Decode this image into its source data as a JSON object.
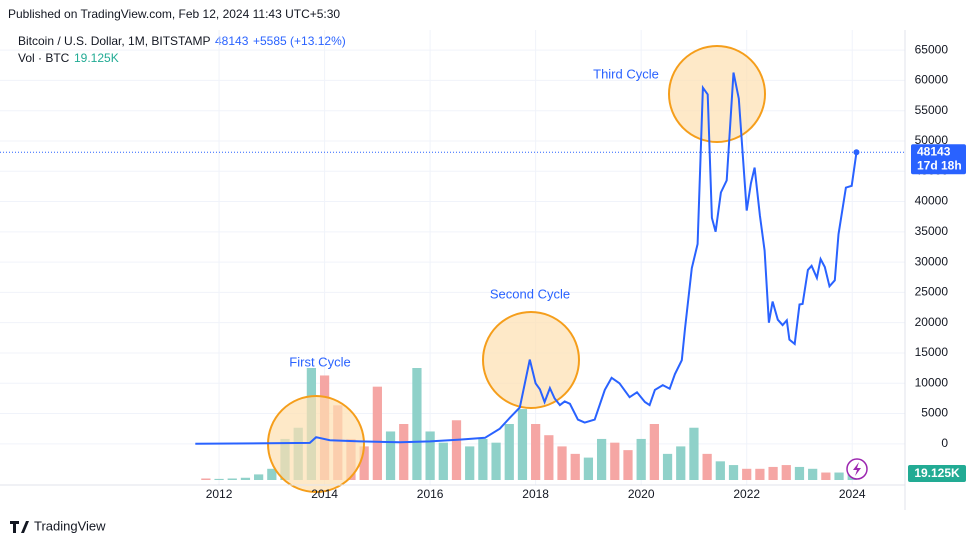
{
  "published": "Published on TradingView.com, Feb 12, 2024 11:43 UTC+5:30",
  "footer": "TradingView",
  "chart_data": {
    "type": "line",
    "title": "Bitcoin / U.S. Dollar, 1M, BITSTAMP",
    "change": "+5585 (+13.12%)",
    "countdown": "17d 18h",
    "annotations": [
      "First Cycle",
      "Second Cycle",
      "Third Cycle"
    ],
    "xlim": [
      2008,
      2025
    ],
    "xticks": [
      2012,
      2014,
      2016,
      2018,
      2020,
      2022,
      2024
    ],
    "ylim": [
      -6800,
      67500
    ],
    "yticks": [
      0,
      5000,
      10000,
      15000,
      20000,
      25000,
      30000,
      35000,
      40000,
      45000,
      50000,
      55000,
      60000,
      65000
    ],
    "grid": true,
    "series": [
      {
        "name": "Bitcoin / U.S. Dollar, 1M, BITSTAMP",
        "color": "#2962ff",
        "x": [
          2011.55,
          2013.72,
          2013.84,
          2014.1,
          2014.67,
          2015.43,
          2016.0,
          2016.56,
          2017.04,
          2017.32,
          2017.51,
          2017.7,
          2017.89,
          2018.0,
          2018.08,
          2018.17,
          2018.27,
          2018.36,
          2018.46,
          2018.55,
          2018.65,
          2018.8,
          2018.93,
          2019.12,
          2019.31,
          2019.44,
          2019.59,
          2019.78,
          2019.92,
          2020.07,
          2020.16,
          2020.26,
          2020.41,
          2020.54,
          2020.64,
          2020.77,
          2020.83,
          2020.96,
          2021.07,
          2021.17,
          2021.26,
          2021.34,
          2021.41,
          2021.51,
          2021.62,
          2021.75,
          2021.85,
          2022.0,
          2022.08,
          2022.15,
          2022.25,
          2022.34,
          2022.42,
          2022.49,
          2022.59,
          2022.68,
          2022.76,
          2022.81,
          2022.91,
          2023.0,
          2023.06,
          2023.16,
          2023.23,
          2023.33,
          2023.4,
          2023.48,
          2023.57,
          2023.67,
          2023.74,
          2023.88,
          2023.99,
          2024.08
        ],
        "values": [
          5,
          150,
          1100,
          600,
          400,
          250,
          400,
          700,
          1000,
          2500,
          4300,
          6000,
          13900,
          10000,
          9000,
          6900,
          9200,
          7500,
          6400,
          7000,
          6600,
          4000,
          3500,
          4000,
          8900,
          10900,
          10000,
          7700,
          8500,
          6900,
          6400,
          8900,
          9700,
          9100,
          11500,
          13800,
          19000,
          29000,
          33000,
          58800,
          57700,
          37300,
          35000,
          41500,
          43500,
          61300,
          57000,
          38500,
          43000,
          45600,
          37700,
          31900,
          20000,
          23500,
          20500,
          19600,
          20400,
          17200,
          16500,
          23000,
          23100,
          28700,
          29400,
          27400,
          30500,
          29200,
          26000,
          27000,
          34600,
          42300,
          42600,
          48143
        ]
      }
    ],
    "volume": {
      "name": "Vol · BTC",
      "up_color": "#8fd1c9",
      "down_color": "#f5a6a4",
      "label_color": "#22ab94",
      "x": [
        2011.75,
        2012.0,
        2012.25,
        2012.5,
        2012.75,
        2013.0,
        2013.25,
        2013.5,
        2013.75,
        2014.0,
        2014.25,
        2014.5,
        2014.75,
        2015.0,
        2015.25,
        2015.5,
        2015.75,
        2016.0,
        2016.25,
        2016.5,
        2016.75,
        2017.0,
        2017.25,
        2017.5,
        2017.75,
        2018.0,
        2018.25,
        2018.5,
        2018.75,
        2019.0,
        2019.25,
        2019.5,
        2019.75,
        2020.0,
        2020.25,
        2020.5,
        2020.75,
        2021.0,
        2021.25,
        2021.5,
        2021.75,
        2022.0,
        2022.25,
        2022.5,
        2022.75,
        2023.0,
        2023.25,
        2023.5,
        2023.75,
        2024.0
      ],
      "values": [
        4,
        3,
        4,
        6,
        15,
        30,
        110,
        140,
        300,
        280,
        200,
        110,
        90,
        250,
        130,
        150,
        300,
        130,
        100,
        160,
        90,
        110,
        100,
        150,
        190,
        150,
        120,
        90,
        70,
        60,
        110,
        100,
        80,
        110,
        150,
        70,
        90,
        140,
        70,
        50,
        40,
        30,
        30,
        35,
        40,
        35,
        30,
        20,
        20,
        19.125
      ],
      "up": [
        false,
        true,
        true,
        true,
        true,
        true,
        true,
        true,
        true,
        false,
        false,
        false,
        false,
        false,
        true,
        false,
        true,
        true,
        true,
        false,
        true,
        true,
        true,
        true,
        true,
        false,
        false,
        false,
        false,
        true,
        true,
        false,
        false,
        true,
        false,
        true,
        true,
        true,
        false,
        true,
        true,
        false,
        false,
        false,
        false,
        true,
        true,
        false,
        true,
        true
      ],
      "value_labels": {
        "49": "19.125K"
      }
    }
  }
}
